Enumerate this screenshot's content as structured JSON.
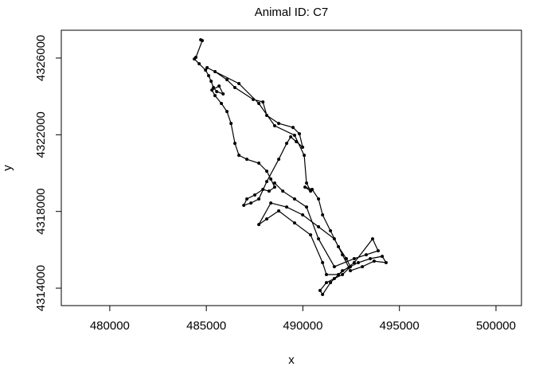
{
  "chart_data": {
    "type": "line",
    "title": "Animal ID: C7",
    "x_label": "x",
    "y_label": "y",
    "x": [
      484710,
      484790,
      484460,
      484380,
      484630,
      484960,
      485120,
      485250,
      485370,
      485540,
      485870,
      485660,
      485290,
      485450,
      485780,
      486070,
      486280,
      486480,
      486690,
      487100,
      487720,
      488130,
      488340,
      488540,
      488250,
      487930,
      487510,
      487100,
      486940,
      487310,
      487720,
      488130,
      488750,
      489160,
      489370,
      489660,
      489990,
      489820,
      489490,
      488750,
      488130,
      487930,
      487430,
      486480,
      486070,
      485450,
      485040,
      486690,
      487720,
      488540,
      489570,
      490070,
      490190,
      490400,
      490110,
      490480,
      490810,
      491020,
      491430,
      491840,
      492250,
      492460,
      492050,
      491630,
      491220,
      490890,
      491020,
      491430,
      492050,
      492870,
      493490,
      494110,
      494310,
      493690,
      493080,
      492460,
      492050,
      491630,
      490810,
      489990,
      489160,
      488340,
      487720,
      488130,
      488750,
      489570,
      490400,
      491020,
      491220,
      491840,
      492660,
      493610,
      493900,
      493280,
      492660,
      491630,
      490810,
      490190,
      489570,
      488960,
      488540
    ],
    "y": [
      4326950,
      4326910,
      4326040,
      4325950,
      4325700,
      4325370,
      4325080,
      4324790,
      4324460,
      4324250,
      4324130,
      4324540,
      4324330,
      4324040,
      4323630,
      4323210,
      4322590,
      4321550,
      4320930,
      4320720,
      4320520,
      4320100,
      4319690,
      4319270,
      4319060,
      4319150,
      4318860,
      4318650,
      4318320,
      4318440,
      4318650,
      4319560,
      4320720,
      4321550,
      4321890,
      4321640,
      4321350,
      4322050,
      4322380,
      4322590,
      4323010,
      4323710,
      4323840,
      4324460,
      4324870,
      4325290,
      4325500,
      4324670,
      4323630,
      4322470,
      4321970,
      4320930,
      4319480,
      4319060,
      4319270,
      4319150,
      4318650,
      4317820,
      4316990,
      4316160,
      4315540,
      4315120,
      4314710,
      4314500,
      4314290,
      4313880,
      4313670,
      4314290,
      4314910,
      4315330,
      4315540,
      4315660,
      4315330,
      4315410,
      4315120,
      4314910,
      4315740,
      4316570,
      4317200,
      4317820,
      4318230,
      4318440,
      4317320,
      4317610,
      4318030,
      4317400,
      4316780,
      4315330,
      4314710,
      4314710,
      4315330,
      4316570,
      4315950,
      4315740,
      4315540,
      4315120,
      4316570,
      4318230,
      4318650,
      4319060,
      4319480
    ],
    "color": "#000000",
    "markers": true,
    "xlim": [
      477490,
      501320
    ],
    "ylim": [
      4313090,
      4327450
    ],
    "xticks": [
      480000,
      485000,
      490000,
      495000,
      500000
    ],
    "yticks": [
      4314000,
      4318000,
      4322000,
      4326000
    ]
  }
}
